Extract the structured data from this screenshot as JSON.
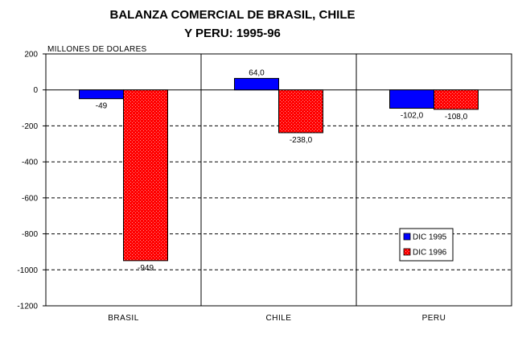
{
  "chart_data": {
    "type": "bar",
    "title_lines": [
      "BALANZA COMERCIAL DE BRASIL, CHILE",
      "Y PERU: 1995-96"
    ],
    "ylabel": "MILLONES DE DOLARES",
    "xlabel": "",
    "categories": [
      "BRASIL",
      "CHILE",
      "PERU"
    ],
    "series": [
      {
        "name": "DIC 1995",
        "values": [
          -49,
          64,
          -102
        ],
        "labels": [
          "-49",
          "64,0",
          "-102,0"
        ],
        "color": "#0000ff"
      },
      {
        "name": "DIC 1996",
        "values": [
          -949,
          -238,
          -108
        ],
        "labels": [
          "-949",
          "-238,0",
          "-108,0"
        ],
        "color": "#ff0000"
      }
    ],
    "ylim": [
      -1200,
      200
    ],
    "yticks": [
      200,
      0,
      -200,
      -400,
      -600,
      -800,
      -1000,
      -1200
    ],
    "ytick_labels": [
      "200",
      "0",
      "-200",
      "-400",
      "-600",
      "-800",
      "-1000",
      "-1200"
    ],
    "grid": "horizontal dashed",
    "legend_position": "right"
  }
}
